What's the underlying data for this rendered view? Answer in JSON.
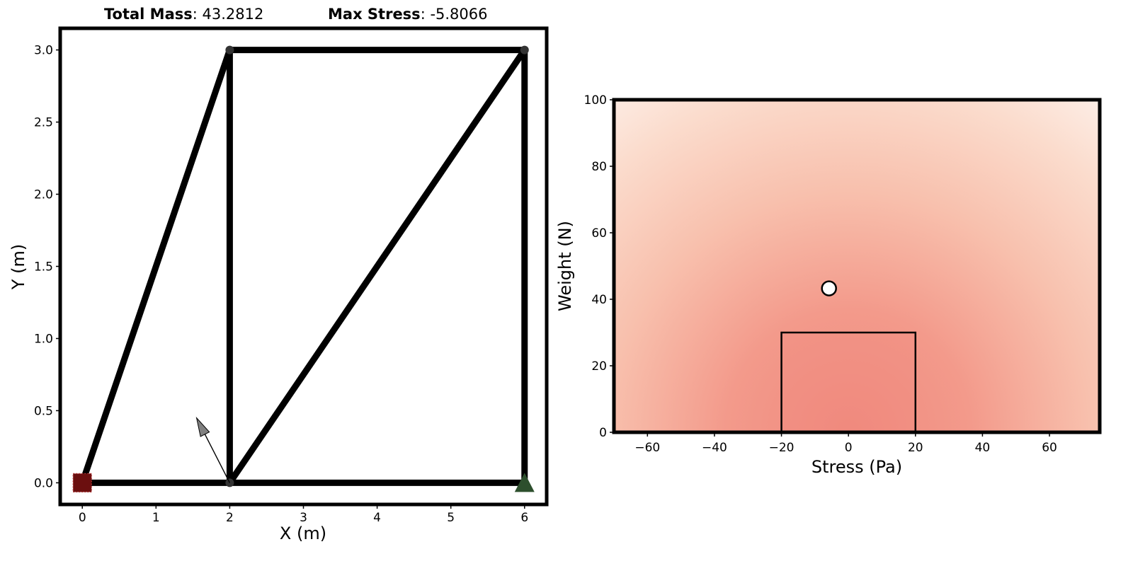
{
  "header": {
    "mass_label": "Total Mass",
    "mass_value": ": 43.2812",
    "stress_label": "Max Stress",
    "stress_value": ": -5.8066"
  },
  "chart_data": [
    {
      "type": "truss",
      "xlabel": "X (m)",
      "ylabel": "Y (m)",
      "xlim": [
        -0.3,
        6.3
      ],
      "ylim": [
        -0.15,
        3.15
      ],
      "xticks": [
        "0",
        "1",
        "2",
        "3",
        "4",
        "5",
        "6"
      ],
      "yticks": [
        "0.0",
        "0.5",
        "1.0",
        "1.5",
        "2.0",
        "2.5",
        "3.0"
      ],
      "nodes": [
        {
          "id": "n0",
          "x": 0,
          "y": 0
        },
        {
          "id": "n1",
          "x": 2,
          "y": 0
        },
        {
          "id": "n2",
          "x": 6,
          "y": 0
        },
        {
          "id": "n3",
          "x": 2,
          "y": 3
        },
        {
          "id": "n4",
          "x": 6,
          "y": 3
        }
      ],
      "members": [
        [
          "n0",
          "n1"
        ],
        [
          "n1",
          "n2"
        ],
        [
          "n0",
          "n3"
        ],
        [
          "n1",
          "n3"
        ],
        [
          "n3",
          "n4"
        ],
        [
          "n1",
          "n4"
        ],
        [
          "n2",
          "n4"
        ]
      ],
      "supports": [
        {
          "node": "n0",
          "type": "pinned",
          "shape": "square",
          "color": "#6b0f0f"
        },
        {
          "node": "n2",
          "type": "roller",
          "shape": "triangle",
          "color": "#2d4f2d"
        }
      ],
      "load": {
        "node": "n1",
        "dx": -0.45,
        "dy": 0.45,
        "color": "#808080"
      },
      "member_color": "#000000"
    },
    {
      "type": "heatmap",
      "xlabel": "Stress (Pa)",
      "ylabel": "Weight (N)",
      "xlim": [
        -70,
        75
      ],
      "ylim": [
        0,
        100
      ],
      "xticks": [
        -60,
        -40,
        -20,
        0,
        20,
        40,
        60
      ],
      "yticks": [
        0,
        20,
        40,
        60,
        80,
        100
      ],
      "feasible_region": {
        "x": [
          -20,
          20
        ],
        "y": [
          0,
          30
        ]
      },
      "point": {
        "x": -5.8066,
        "y": 43.2812
      },
      "colors": {
        "high": "#f08a7e",
        "low": "#fdf3ee"
      }
    }
  ]
}
